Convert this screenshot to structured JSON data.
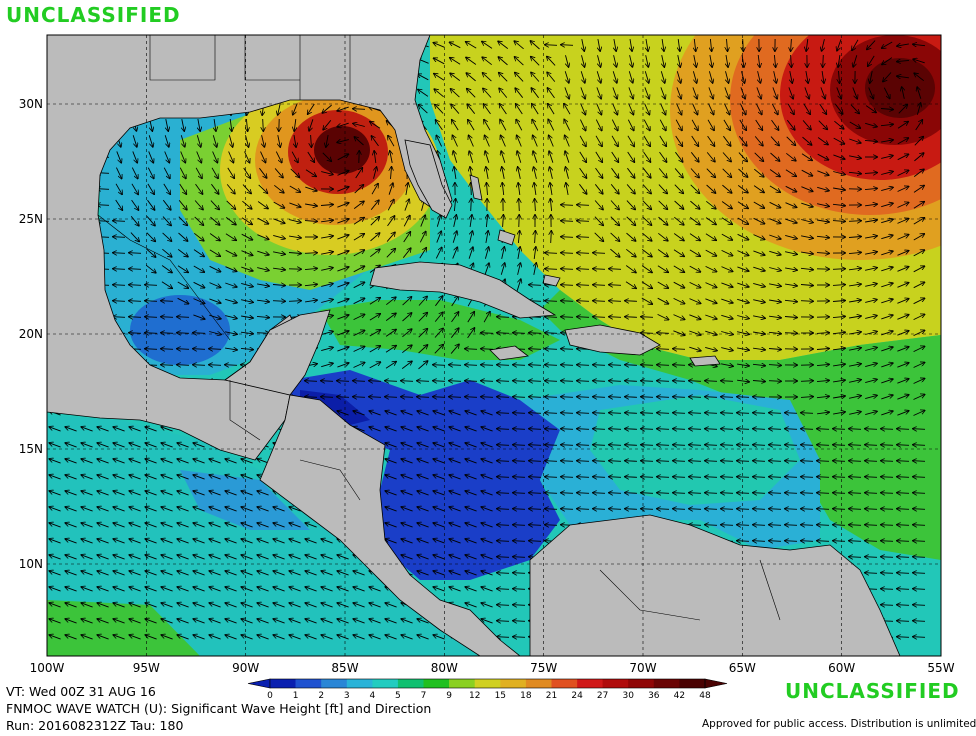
{
  "classification": {
    "top": "UNCLASSIFIED",
    "bottom": "UNCLASSIFIED"
  },
  "info": {
    "valid_time": "VT: Wed 00Z 31 AUG 16",
    "product": "FNMOC WAVE WATCH (U): Significant Wave Height [ft] and Direction",
    "run": "Run: 2016082312Z Tau: 180"
  },
  "disclaimer": "Approved for public access. Distribution is unlimited.",
  "axes": {
    "lon_labels": [
      "100W",
      "95W",
      "90W",
      "85W",
      "80W",
      "75W",
      "70W",
      "65W",
      "60W",
      "55W"
    ],
    "lat_labels": [
      "10N",
      "15N",
      "20N",
      "25N",
      "30N"
    ],
    "lon_range": [
      -100,
      -55
    ],
    "lat_range": [
      6,
      33
    ]
  },
  "colorbar": {
    "labels": [
      "0",
      "1",
      "2",
      "3",
      "4",
      "5",
      "7",
      "9",
      "12",
      "15",
      "18",
      "21",
      "24",
      "27",
      "30",
      "36",
      "42",
      "48"
    ],
    "colors": [
      "#0a20b0",
      "#1f52d0",
      "#2a86d6",
      "#2ab3d8",
      "#22ccc0",
      "#10c070",
      "#20c020",
      "#8ad020",
      "#d0d020",
      "#e0b020",
      "#e08a20",
      "#e05020",
      "#d01818",
      "#b00c0c",
      "#900606",
      "#6a0404",
      "#4a0202"
    ]
  },
  "colors": {
    "land": "#bbbbbb",
    "water_bg": "#22b0c8",
    "classification": "#22cc22"
  }
}
